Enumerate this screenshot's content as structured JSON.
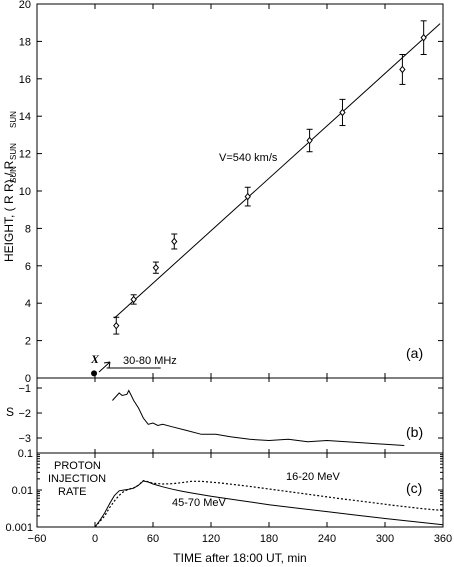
{
  "chart_data": [
    {
      "panel": "a",
      "type": "scatter",
      "panel_label": "(a)",
      "ylabel": "HEIGHT, ( R R) / R",
      "ylabel_subscripts": [
        "SUN",
        "SUN",
        "SUN"
      ],
      "ylim": [
        0,
        20
      ],
      "yticks": [
        0,
        2,
        4,
        6,
        8,
        10,
        12,
        14,
        16,
        18,
        20
      ],
      "xlim": [
        -60,
        360
      ],
      "grid": false,
      "series": [
        {
          "marker": "diamond",
          "points": [
            {
              "x": 22,
              "y": 2.8,
              "err": 0.45
            },
            {
              "x": 40,
              "y": 4.2,
              "err": 0.25
            },
            {
              "x": 63,
              "y": 5.9,
              "err": 0.3
            },
            {
              "x": 82,
              "y": 7.3,
              "err": 0.4
            },
            {
              "x": 158,
              "y": 9.7,
              "err": 0.5
            },
            {
              "x": 222,
              "y": 12.7,
              "err": 0.6
            },
            {
              "x": 256,
              "y": 14.2,
              "err": 0.7
            },
            {
              "x": 318,
              "y": 16.5,
              "err": 0.8
            },
            {
              "x": 340,
              "y": 18.2,
              "err": 0.9
            }
          ]
        }
      ],
      "fit_line": {
        "x": [
          20,
          357
        ],
        "y": [
          3.2,
          18.95
        ]
      },
      "fit_label": "V=540 km/s",
      "marker_point": {
        "x": -1,
        "y": 0.25,
        "label": "X"
      },
      "radio_burst": {
        "label": "30-80 MHz",
        "x_start": 12,
        "x_end": 68,
        "y": 0.5
      }
    },
    {
      "panel": "b",
      "type": "line",
      "panel_label": "(b)",
      "ylabel": "S",
      "ylim": [
        -3.6,
        -0.6
      ],
      "yticks": [
        -1,
        -2,
        -3
      ],
      "xlim": [
        -60,
        360
      ],
      "series": [
        {
          "x": [
            18,
            25,
            28,
            33,
            35,
            40,
            45,
            50,
            55,
            60,
            65,
            70,
            80,
            95,
            110,
            125,
            140,
            160,
            180,
            200,
            220,
            240,
            260,
            280,
            300,
            320
          ],
          "y": [
            -1.5,
            -1.2,
            -1.3,
            -1.25,
            -1.1,
            -1.5,
            -1.8,
            -2.2,
            -2.45,
            -2.4,
            -2.5,
            -2.45,
            -2.55,
            -2.7,
            -2.85,
            -2.85,
            -2.95,
            -3.05,
            -3.1,
            -3.05,
            -3.15,
            -3.1,
            -3.15,
            -3.2,
            -3.25,
            -3.3
          ]
        }
      ]
    },
    {
      "panel": "c",
      "type": "line",
      "panel_label": "(c)",
      "title_lines": [
        "PROTON",
        "INJECTION",
        "RATE"
      ],
      "yscale": "log",
      "ylim": [
        0.001,
        0.1
      ],
      "yticks": [
        0.001,
        0.01,
        0.1
      ],
      "ytick_labels": [
        "0.001",
        "0.01",
        "0.1"
      ],
      "xlim": [
        -60,
        360
      ],
      "xticks": [
        -60,
        0,
        60,
        120,
        180,
        240,
        300,
        360
      ],
      "xlabel": "TIME after 18:00 UT, min",
      "series": [
        {
          "name": "45-70 MeV",
          "style": "solid",
          "x": [
            0,
            5,
            10,
            15,
            20,
            25,
            30,
            35,
            40,
            45,
            50,
            55,
            60,
            70,
            80,
            90,
            100,
            120,
            150,
            180,
            210,
            240,
            270,
            300,
            330,
            360
          ],
          "y": [
            0.001,
            0.0015,
            0.0024,
            0.0042,
            0.007,
            0.0095,
            0.01,
            0.0105,
            0.0112,
            0.0135,
            0.0175,
            0.0165,
            0.0145,
            0.0122,
            0.0105,
            0.0092,
            0.0083,
            0.0068,
            0.0052,
            0.004,
            0.0032,
            0.0026,
            0.0021,
            0.0017,
            0.0014,
            0.00115
          ]
        },
        {
          "name": "16-20 MeV",
          "style": "dotted",
          "x": [
            0,
            5,
            10,
            15,
            20,
            25,
            30,
            35,
            40,
            45,
            50,
            55,
            60,
            70,
            80,
            90,
            100,
            110,
            130,
            160,
            190,
            220,
            250,
            280,
            310,
            340,
            360
          ],
          "y": [
            0.001,
            0.0014,
            0.002,
            0.0033,
            0.005,
            0.0072,
            0.0092,
            0.0105,
            0.0115,
            0.0135,
            0.018,
            0.0168,
            0.0152,
            0.0145,
            0.0148,
            0.0158,
            0.0172,
            0.0172,
            0.0155,
            0.0125,
            0.0098,
            0.0077,
            0.006,
            0.0048,
            0.0038,
            0.0031,
            0.0028
          ]
        }
      ]
    }
  ]
}
